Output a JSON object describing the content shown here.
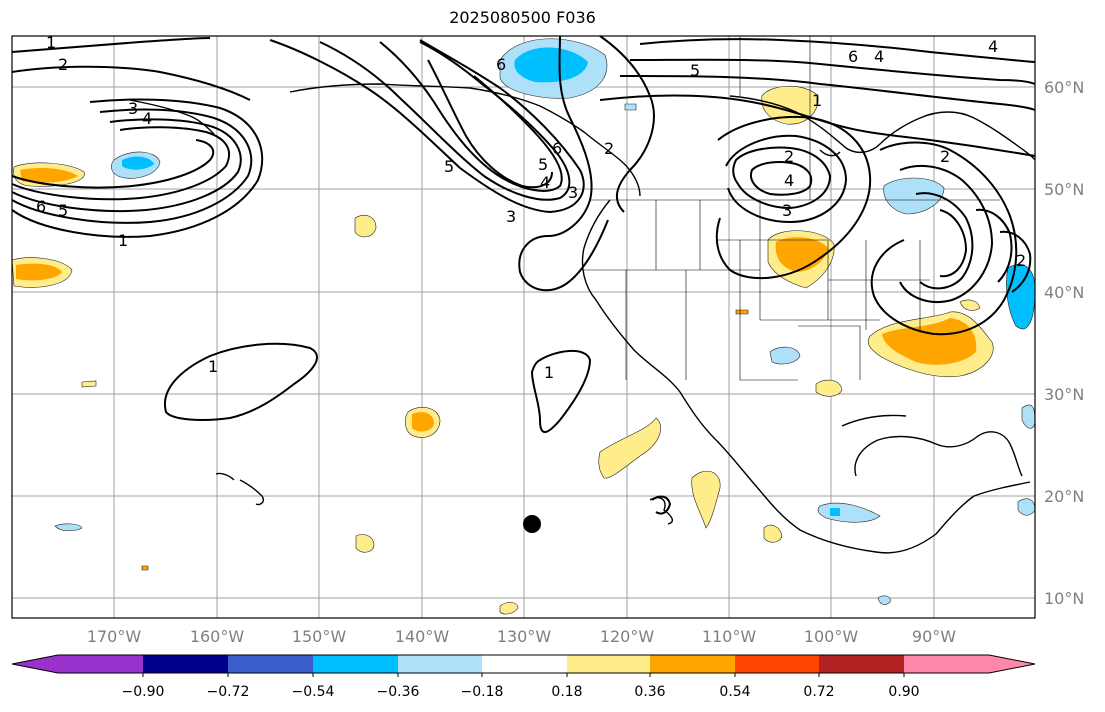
{
  "title": "2025080500 F036",
  "map": {
    "lat_labels": [
      "60°N",
      "50°N",
      "40°N",
      "30°N",
      "20°N",
      "10°N"
    ],
    "lon_labels": [
      "170°W",
      "160°W",
      "150°W",
      "140°W",
      "130°W",
      "120°W",
      "110°W",
      "100°W",
      "90°W"
    ],
    "contour_labels": [
      "1",
      "2",
      "3",
      "4",
      "6",
      "5",
      "3",
      "4",
      "6",
      "5",
      "1",
      "6",
      "5",
      "5",
      "3",
      "2",
      "6",
      "2",
      "4",
      "2",
      "4",
      "3",
      "2",
      "1",
      "1",
      "1",
      "4"
    ],
    "marker": "storm-center"
  },
  "colorbar": {
    "ticks": [
      "−0.90",
      "−0.72",
      "−0.54",
      "−0.36",
      "−0.18",
      "0.18",
      "0.36",
      "0.54",
      "0.72",
      "0.90"
    ],
    "colors": [
      "#9932cc",
      "#00008b",
      "#3a5fcd",
      "#00bfff",
      "#afe0fa",
      "#ffffff",
      "#ffec8b",
      "#ffa500",
      "#ff4500",
      "#b22222",
      "#ff88aa"
    ]
  }
}
